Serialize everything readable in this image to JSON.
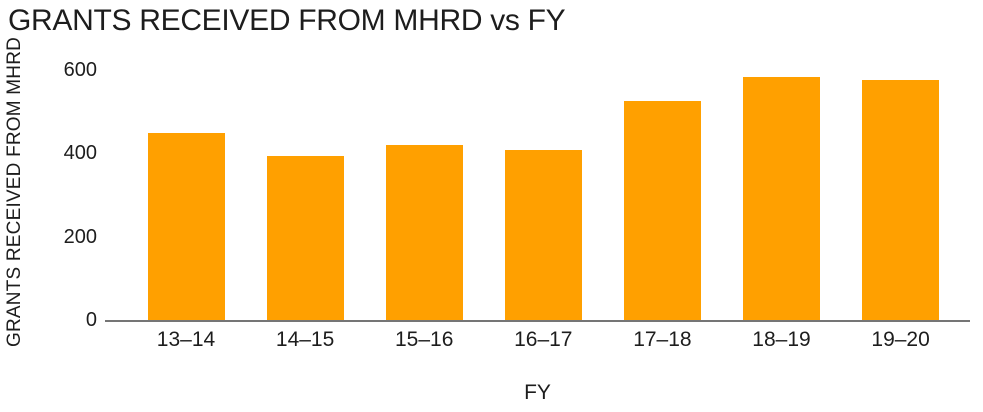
{
  "page": {
    "background": "#ffffff"
  },
  "chart_data": {
    "type": "bar",
    "title": "GRANTS RECEIVED FROM MHRD vs FY",
    "categories": [
      "13–14",
      "14–15",
      "15–16",
      "16–17",
      "17–18",
      "18–19",
      "19–20"
    ],
    "values": [
      449,
      393,
      421,
      407,
      526,
      583,
      577
    ],
    "xlabel": "FY",
    "ylabel": "GRANTS RECEIVED FROM MHRD",
    "ylim": [
      0,
      600
    ],
    "yticks": [
      0,
      200,
      400,
      600
    ],
    "grid": false,
    "legend": false,
    "bar_color": "#FFA000",
    "axis_line_color": "#757575",
    "text_color": "#1d1d1d"
  }
}
